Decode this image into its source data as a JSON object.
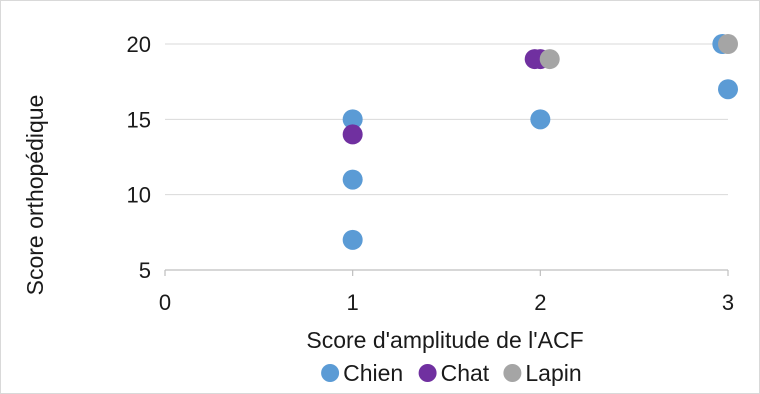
{
  "chart_data": {
    "type": "scatter",
    "title": "",
    "xlabel": "Score d'amplitude de l'ACF",
    "ylabel": "Score orthopédique",
    "xlim": [
      0,
      3
    ],
    "ylim": [
      5,
      20
    ],
    "xticks": [
      "0",
      "1",
      "2",
      "3"
    ],
    "yticks": [
      "5",
      "10",
      "15",
      "20"
    ],
    "grid": "horizontal",
    "legend_position": "bottom",
    "series": [
      {
        "name": "Chien",
        "color": "#5b9bd5",
        "points": [
          {
            "x": 1,
            "y": 15
          },
          {
            "x": 1,
            "y": 11
          },
          {
            "x": 1,
            "y": 7
          },
          {
            "x": 2,
            "y": 15
          },
          {
            "x": 2.97,
            "y": 20
          },
          {
            "x": 3,
            "y": 17
          }
        ]
      },
      {
        "name": "Chat",
        "color": "#7030a0",
        "points": [
          {
            "x": 1,
            "y": 14
          },
          {
            "x": 1.97,
            "y": 19
          },
          {
            "x": 2,
            "y": 19
          }
        ]
      },
      {
        "name": "Lapin",
        "color": "#a5a5a5",
        "points": [
          {
            "x": 2.05,
            "y": 19
          },
          {
            "x": 3,
            "y": 20
          }
        ]
      }
    ]
  }
}
